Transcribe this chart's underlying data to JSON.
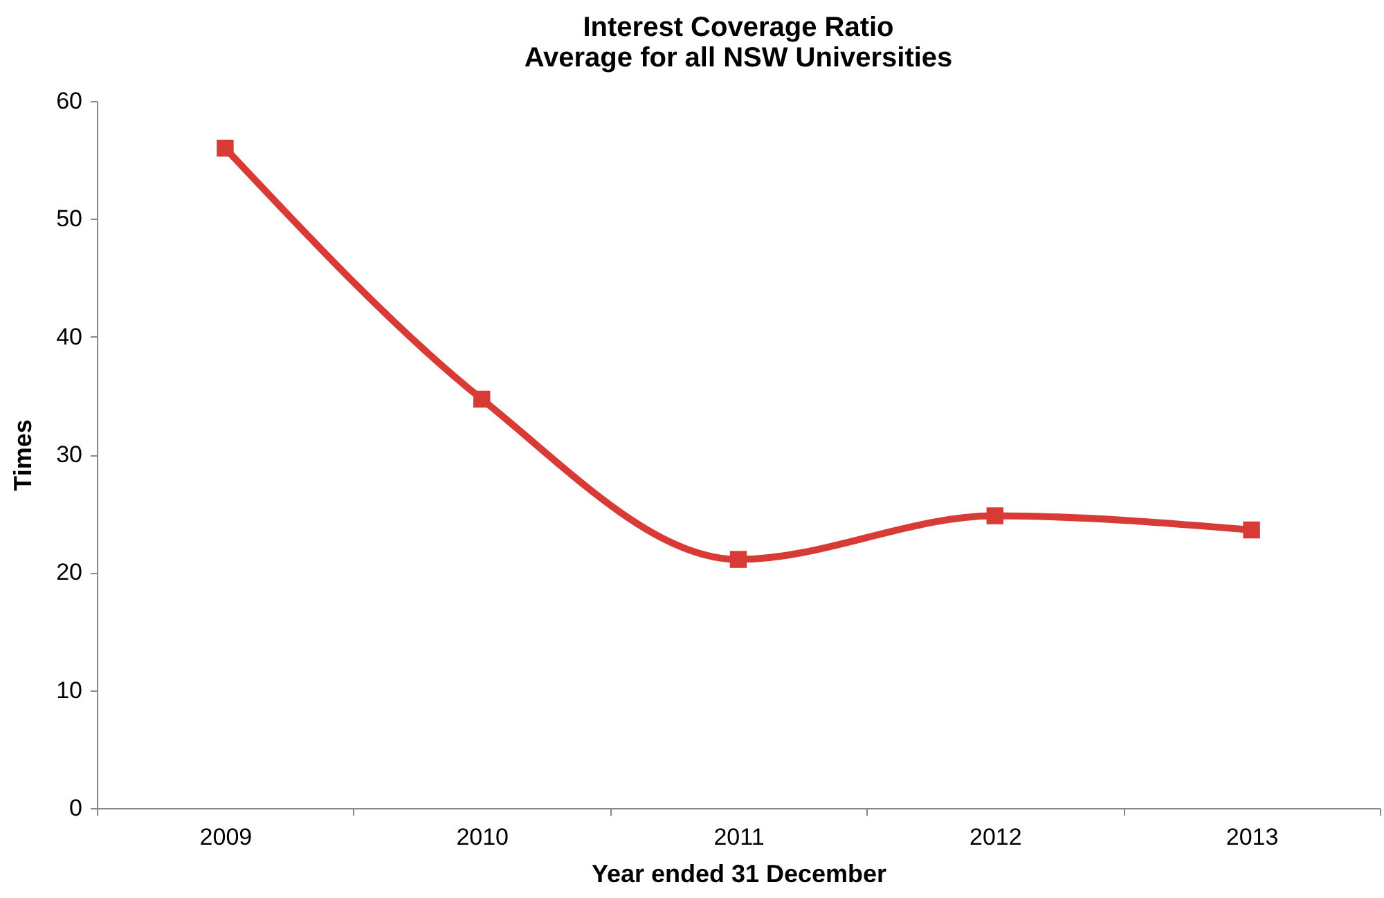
{
  "chart_data": {
    "type": "line",
    "title": "Interest Coverage Ratio",
    "subtitle": "Average for all NSW Universities",
    "xlabel": "Year ended 31 December",
    "ylabel": "Times",
    "categories": [
      "2009",
      "2010",
      "2011",
      "2012",
      "2013"
    ],
    "series": [
      {
        "color": "#d83b36",
        "values": [
          56,
          34.7,
          21.1,
          24.8,
          23.6
        ]
      }
    ],
    "ylim": [
      0,
      60
    ],
    "yticks": [
      0,
      10,
      20,
      30,
      40,
      50,
      60
    ],
    "grid": false,
    "marker": "square",
    "line_style": "solid"
  }
}
